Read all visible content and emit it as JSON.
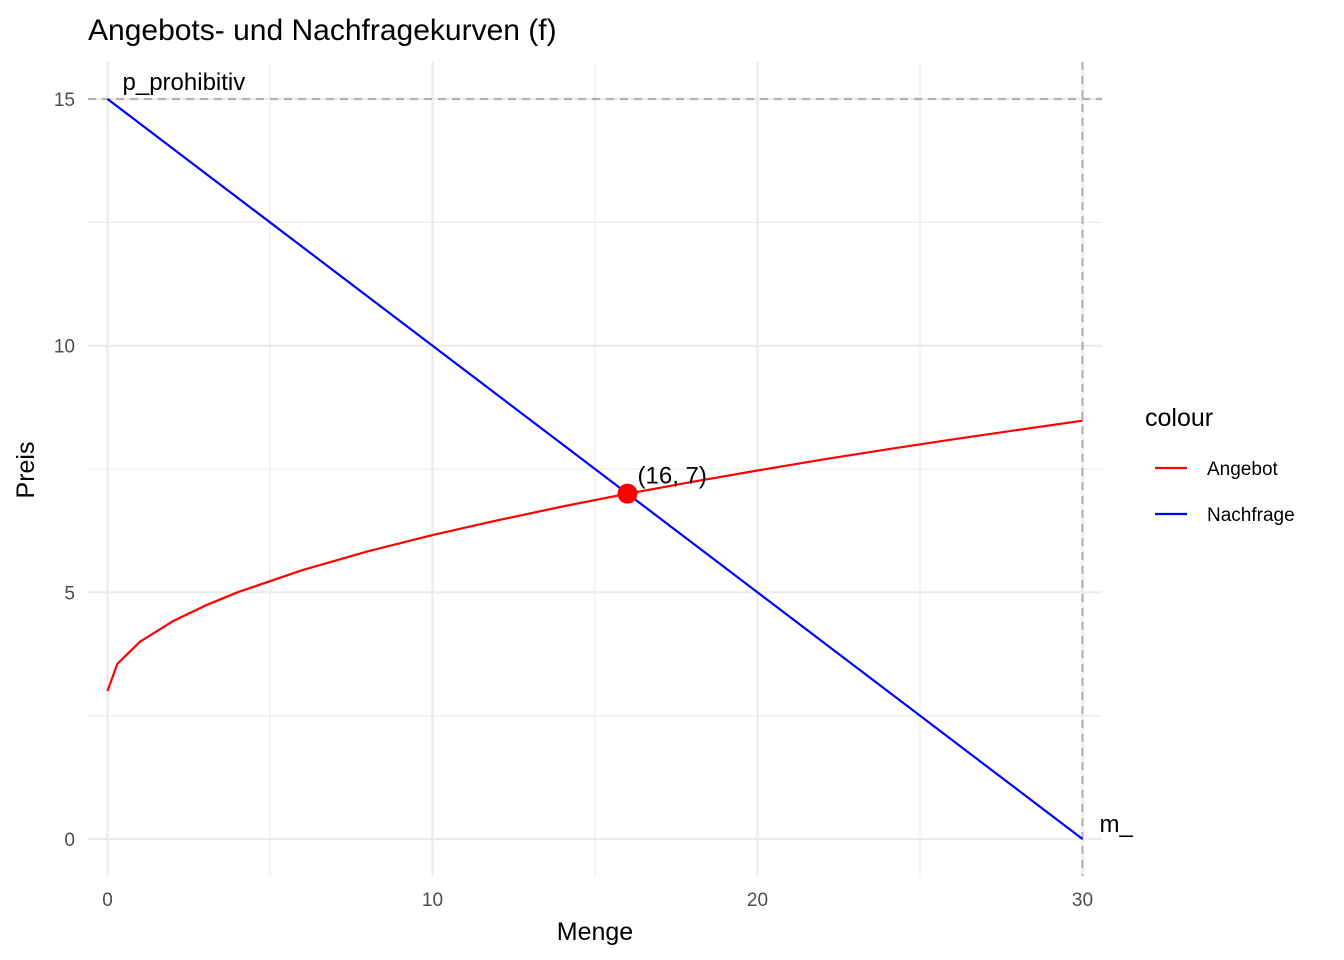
{
  "chart_data": {
    "type": "line",
    "title": "Angebots- und Nachfragekurven (f)",
    "xlabel": "Menge",
    "ylabel": "Preis",
    "xlim": [
      -0.6,
      30.6
    ],
    "ylim": [
      -0.75,
      15.75
    ],
    "x_ticks": [
      0,
      10,
      20,
      30
    ],
    "y_ticks": [
      0,
      5,
      10,
      15
    ],
    "x_tick_labels": [
      "0",
      "10",
      "20",
      "30"
    ],
    "y_tick_labels": [
      "0",
      "5",
      "10",
      "15"
    ],
    "grid": true,
    "legend": {
      "title": "colour",
      "position": "right",
      "entries": [
        {
          "label": "Angebot",
          "color": "#ff0000"
        },
        {
          "label": "Nachfrage",
          "color": "#0000ff"
        }
      ]
    },
    "series": [
      {
        "name": "Angebot",
        "color": "#ff0000",
        "x": [
          0,
          0.3,
          1,
          2,
          3,
          4,
          6,
          8,
          10,
          12,
          14,
          16,
          18,
          20,
          22,
          24,
          26,
          28,
          30
        ],
        "y": [
          3.0,
          3.55,
          4.0,
          4.41,
          4.73,
          5.0,
          5.45,
          5.83,
          6.16,
          6.46,
          6.74,
          7.0,
          7.24,
          7.47,
          7.69,
          7.9,
          8.1,
          8.29,
          8.48
        ]
      },
      {
        "name": "Nachfrage",
        "color": "#0000ff",
        "x": [
          0,
          30
        ],
        "y": [
          15,
          0
        ]
      }
    ],
    "equilibrium": {
      "x": 16,
      "y": 7,
      "label": "(16, 7)",
      "color": "#ff0000"
    },
    "reference_lines": [
      {
        "orientation": "horizontal",
        "value": 15,
        "label": "p_prohibitiv",
        "color": "#b3b3b3"
      },
      {
        "orientation": "vertical",
        "value": 30,
        "label": "m_",
        "color": "#b3b3b3"
      }
    ]
  }
}
